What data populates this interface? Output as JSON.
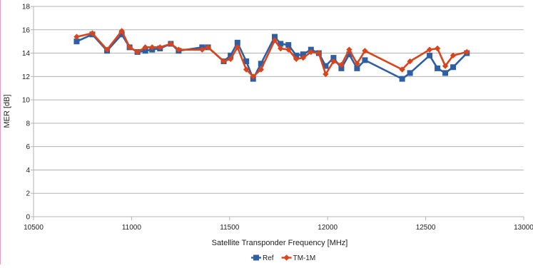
{
  "chart_data": {
    "type": "line",
    "title": "",
    "xlabel": "Satellite Transponder Frequency [MHz]",
    "ylabel": "MER [dB]",
    "xlim": [
      10500,
      13000
    ],
    "ylim": [
      0,
      18
    ],
    "x_ticks": [
      10500,
      11000,
      11500,
      12000,
      12500,
      13000
    ],
    "y_ticks": [
      0,
      2,
      4,
      6,
      8,
      10,
      12,
      14,
      16,
      18
    ],
    "grid": true,
    "legend_position": "bottom",
    "series": [
      {
        "name": "Ref",
        "color": "#2e5fa3",
        "marker": "square",
        "points": [
          [
            10720,
            15.0
          ],
          [
            10800,
            15.6
          ],
          [
            10875,
            14.2
          ],
          [
            10950,
            15.6
          ],
          [
            10990,
            14.5
          ],
          [
            11030,
            14.1
          ],
          [
            11070,
            14.2
          ],
          [
            11105,
            14.3
          ],
          [
            11145,
            14.4
          ],
          [
            11200,
            14.8
          ],
          [
            11240,
            14.2
          ],
          [
            11360,
            14.5
          ],
          [
            11390,
            14.5
          ],
          [
            11470,
            13.3
          ],
          [
            11505,
            13.8
          ],
          [
            11540,
            14.9
          ],
          [
            11585,
            13.3
          ],
          [
            11620,
            11.8
          ],
          [
            11660,
            13.1
          ],
          [
            11730,
            15.4
          ],
          [
            11760,
            14.8
          ],
          [
            11800,
            14.7
          ],
          [
            11840,
            13.8
          ],
          [
            11875,
            13.9
          ],
          [
            11915,
            14.3
          ],
          [
            11955,
            14.0
          ],
          [
            11990,
            12.9
          ],
          [
            12030,
            13.6
          ],
          [
            12070,
            12.7
          ],
          [
            12110,
            13.9
          ],
          [
            12150,
            12.7
          ],
          [
            12190,
            13.4
          ],
          [
            12380,
            11.8
          ],
          [
            12420,
            12.3
          ],
          [
            12520,
            13.8
          ],
          [
            12560,
            12.7
          ],
          [
            12600,
            12.3
          ],
          [
            12640,
            12.8
          ],
          [
            12710,
            14.0
          ]
        ]
      },
      {
        "name": "TM-1M",
        "color": "#d9441c",
        "marker": "diamond",
        "points": [
          [
            10720,
            15.4
          ],
          [
            10800,
            15.7
          ],
          [
            10875,
            14.3
          ],
          [
            10950,
            15.9
          ],
          [
            10990,
            14.5
          ],
          [
            11030,
            14.1
          ],
          [
            11070,
            14.5
          ],
          [
            11105,
            14.5
          ],
          [
            11145,
            14.5
          ],
          [
            11200,
            14.8
          ],
          [
            11240,
            14.3
          ],
          [
            11360,
            14.3
          ],
          [
            11390,
            14.5
          ],
          [
            11470,
            13.3
          ],
          [
            11505,
            13.5
          ],
          [
            11540,
            14.5
          ],
          [
            11585,
            12.6
          ],
          [
            11620,
            12.0
          ],
          [
            11660,
            12.6
          ],
          [
            11730,
            15.1
          ],
          [
            11760,
            14.4
          ],
          [
            11800,
            14.3
          ],
          [
            11840,
            13.5
          ],
          [
            11875,
            13.6
          ],
          [
            11915,
            14.1
          ],
          [
            11955,
            14.0
          ],
          [
            11990,
            12.2
          ],
          [
            12030,
            13.3
          ],
          [
            12070,
            13.0
          ],
          [
            12110,
            14.3
          ],
          [
            12150,
            13.1
          ],
          [
            12190,
            14.2
          ],
          [
            12380,
            12.6
          ],
          [
            12420,
            13.3
          ],
          [
            12520,
            14.3
          ],
          [
            12560,
            14.4
          ],
          [
            12600,
            12.9
          ],
          [
            12640,
            13.8
          ],
          [
            12710,
            14.1
          ]
        ]
      }
    ]
  }
}
